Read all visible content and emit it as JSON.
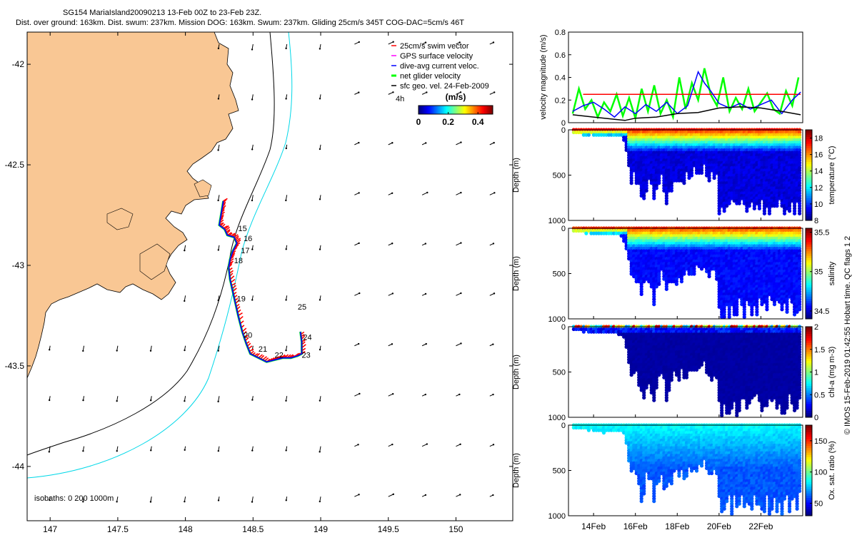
{
  "header": {
    "title_line1": "SG154 MariaIsland20090213 13-Feb 00Z to 23-Feb 23Z.",
    "title_line2": "Dist. over ground: 163km. Dist. swum: 237km. Mission DOG: 163km. Swum: 237km. Gliding 25cm/s 345T COG-DAC=5cm/s 46T"
  },
  "colors": {
    "land": "#F9C794",
    "isobath_200": "#000000",
    "isobath_1000": "#00D8E8",
    "swim_vector": "#FF0000",
    "gps_velocity": "#FF00FF",
    "dac_velocity": "#0000FF",
    "net_velocity": "#00FF00",
    "sfc_geo": "#000000"
  },
  "chart_data": [
    {
      "type": "map",
      "name": "track-map",
      "xlim": [
        146.83,
        150.42
      ],
      "ylim": [
        -44.27,
        -41.84
      ],
      "xticks": [
        147,
        147.5,
        148,
        148.5,
        149,
        149.5,
        150
      ],
      "xtick_labels": [
        "147",
        "147.5",
        "148",
        "148.5",
        "149",
        "149.5",
        "150"
      ],
      "yticks": [
        -42,
        -42.5,
        -43,
        -43.5,
        -44
      ],
      "ytick_labels": [
        "-42",
        "-42.5",
        "-43",
        "-43.5",
        "-44"
      ],
      "legend": [
        "25cm/s swim vector",
        "GPS surface velocity",
        "dive-avg current veloc.",
        "net glider velocity",
        "sfc geo. vel. 24-Feb-2009"
      ],
      "legend_position": "top-right",
      "colorbar_title": "(m/s)",
      "colorbar_ticks": [
        "0",
        "0.2",
        "0.4"
      ],
      "colorbar_range": [
        0,
        0.5
      ],
      "arrow_scale_label": "4h",
      "isobaths_label": "isobaths: 0   200  1000m",
      "track": [
        [
          148.28,
          -42.68
        ],
        [
          148.27,
          -42.72
        ],
        [
          148.26,
          -42.76
        ],
        [
          148.25,
          -42.8
        ],
        [
          148.29,
          -42.82
        ],
        [
          148.31,
          -42.85
        ],
        [
          148.36,
          -42.86
        ],
        [
          148.38,
          -42.89
        ],
        [
          148.35,
          -42.93
        ],
        [
          148.33,
          -42.97
        ],
        [
          148.32,
          -43.01
        ],
        [
          148.33,
          -43.07
        ],
        [
          148.35,
          -43.13
        ],
        [
          148.37,
          -43.19
        ],
        [
          148.39,
          -43.25
        ],
        [
          148.42,
          -43.33
        ],
        [
          148.45,
          -43.39
        ],
        [
          148.48,
          -43.44
        ],
        [
          148.54,
          -43.46
        ],
        [
          148.6,
          -43.48
        ],
        [
          148.66,
          -43.47
        ],
        [
          148.72,
          -43.46
        ],
        [
          148.78,
          -43.46
        ],
        [
          148.83,
          -43.45
        ],
        [
          148.86,
          -43.44
        ],
        [
          148.86,
          -43.38
        ],
        [
          148.85,
          -43.33
        ]
      ],
      "day_labels": [
        {
          "text": "15",
          "lon": 148.39,
          "lat": -42.83
        },
        {
          "text": "16",
          "lon": 148.43,
          "lat": -42.88
        },
        {
          "text": "17",
          "lon": 148.41,
          "lat": -42.94
        },
        {
          "text": "18",
          "lon": 148.36,
          "lat": -42.99
        },
        {
          "text": "19",
          "lon": 148.38,
          "lat": -43.18
        },
        {
          "text": "20",
          "lon": 148.43,
          "lat": -43.36
        },
        {
          "text": "21",
          "lon": 148.54,
          "lat": -43.43
        },
        {
          "text": "22",
          "lon": 148.66,
          "lat": -43.46
        },
        {
          "text": "23",
          "lon": 148.86,
          "lat": -43.46
        },
        {
          "text": "24",
          "lon": 148.87,
          "lat": -43.37
        },
        {
          "text": "25",
          "lon": 148.83,
          "lat": -43.22
        }
      ]
    },
    {
      "type": "line",
      "name": "velocity-panel",
      "ylabel": "velocity magnitude (m/s)",
      "ylim": [
        0,
        0.8
      ],
      "yticks": [
        0,
        0.2,
        0.4,
        0.6,
        0.8
      ],
      "xlim": [
        12.8,
        24.0
      ],
      "series": [
        {
          "name": "25cm/s swim vector",
          "x": [
            13.5,
            23.9
          ],
          "values": [
            0.25,
            0.25
          ]
        },
        {
          "name": "dive-avg current veloc.",
          "x": [
            13.0,
            13.5,
            14.0,
            14.5,
            15.0,
            15.5,
            16.0,
            16.5,
            17.0,
            17.5,
            18.0,
            18.5,
            19.0,
            19.3,
            19.6,
            20.0,
            20.5,
            21.0,
            21.5,
            22.0,
            22.5,
            23.0,
            23.5,
            23.9
          ],
          "values": [
            0.1,
            0.15,
            0.18,
            0.12,
            0.05,
            0.14,
            0.08,
            0.16,
            0.1,
            0.18,
            0.08,
            0.15,
            0.45,
            0.35,
            0.28,
            0.17,
            0.13,
            0.17,
            0.12,
            0.16,
            0.2,
            0.08,
            0.2,
            0.27
          ]
        },
        {
          "name": "net glider velocity",
          "x": [
            13.0,
            13.3,
            13.6,
            13.9,
            14.2,
            14.5,
            14.8,
            15.1,
            15.4,
            15.7,
            16.0,
            16.3,
            16.6,
            16.9,
            17.2,
            17.5,
            17.8,
            18.1,
            18.4,
            18.7,
            19.0,
            19.3,
            19.6,
            19.9,
            20.2,
            20.5,
            20.8,
            21.1,
            21.4,
            21.7,
            22.0,
            22.3,
            22.6,
            22.9,
            23.2,
            23.5,
            23.8
          ],
          "values": [
            0.08,
            0.3,
            0.12,
            0.2,
            0.05,
            0.18,
            0.1,
            0.25,
            0.06,
            0.22,
            0.04,
            0.3,
            0.1,
            0.33,
            0.08,
            0.2,
            0.05,
            0.4,
            0.12,
            0.35,
            0.2,
            0.48,
            0.25,
            0.15,
            0.4,
            0.1,
            0.22,
            0.12,
            0.3,
            0.1,
            0.18,
            0.26,
            0.12,
            0.08,
            0.28,
            0.15,
            0.4
          ]
        },
        {
          "name": "sfc geo. vel. 24-Feb-2009",
          "x": [
            13.0,
            14.0,
            15.0,
            15.5,
            16.0,
            17.0,
            18.0,
            19.0,
            20.0,
            21.0,
            22.0,
            23.0,
            23.9
          ],
          "values": [
            0.07,
            0.05,
            0.03,
            0.02,
            0.04,
            0.05,
            0.08,
            0.09,
            0.13,
            0.14,
            0.13,
            0.1,
            0.07
          ]
        }
      ]
    },
    {
      "type": "heatmap",
      "name": "temperature-section",
      "ylabel": "Depth (m)",
      "ylim": [
        1000,
        0
      ],
      "yticks": [
        0,
        500,
        1000
      ],
      "colorbar_label": "temperature (°C)",
      "colorbar_range": [
        8,
        19
      ],
      "colorbar_ticks": [
        8,
        10,
        12,
        14,
        16,
        18
      ],
      "surface_value": 17.5,
      "deep_value": 9
    },
    {
      "type": "heatmap",
      "name": "salinity-section",
      "ylabel": "Depth (m)",
      "ylim": [
        1000,
        0
      ],
      "yticks": [
        0,
        500,
        1000
      ],
      "colorbar_label": "salinity",
      "colorbar_range": [
        34.4,
        35.55
      ],
      "colorbar_ticks": [
        34.5,
        35,
        35.5
      ],
      "surface_value": 35.35,
      "deep_value": 34.55
    },
    {
      "type": "heatmap",
      "name": "chla-section",
      "ylabel": "Depth (m)",
      "ylim": [
        1000,
        0
      ],
      "yticks": [
        0,
        500,
        1000
      ],
      "colorbar_label": "chl-a (mg m-3)",
      "colorbar_range": [
        0,
        2
      ],
      "colorbar_ticks": [
        0,
        0.5,
        1,
        1.5,
        2
      ],
      "surface_value": 0.9,
      "deep_value": 0.05
    },
    {
      "type": "heatmap",
      "name": "oxygen-section",
      "ylabel": "Depth (m)",
      "ylim": [
        1000,
        0
      ],
      "yticks": [
        0,
        500,
        1000
      ],
      "colorbar_label": "Ox. sat. ratio (%)",
      "colorbar_range": [
        30,
        175
      ],
      "colorbar_ticks": [
        50,
        100,
        150
      ],
      "surface_value": 85,
      "deep_value": 60
    }
  ],
  "time_axis": {
    "xlim": [
      12.8,
      24.0
    ],
    "ticks": [
      14,
      16,
      18,
      20,
      22
    ],
    "labels": [
      "14Feb",
      "16Feb",
      "18Feb",
      "20Feb",
      "22Feb"
    ]
  },
  "dive_depth_profile": {
    "days": [
      13.1,
      13.5,
      14.0,
      14.5,
      15.0,
      15.4,
      15.6,
      15.8,
      16.0,
      16.3,
      16.6,
      16.9,
      17.2,
      17.5,
      17.8,
      18.1,
      18.4,
      18.7,
      19.0,
      19.3,
      19.6,
      19.9,
      20.0,
      21.0,
      22.0,
      23.0,
      23.9
    ],
    "max_depth_m": [
      50,
      60,
      75,
      85,
      85,
      95,
      300,
      620,
      560,
      900,
      620,
      900,
      560,
      900,
      620,
      640,
      600,
      560,
      520,
      500,
      600,
      620,
      1000,
      1000,
      1000,
      1000,
      1000
    ]
  },
  "side_caption": "© IMOS 15-Feb-2019 01:42:55 Hobart time. QC flags 1  2"
}
